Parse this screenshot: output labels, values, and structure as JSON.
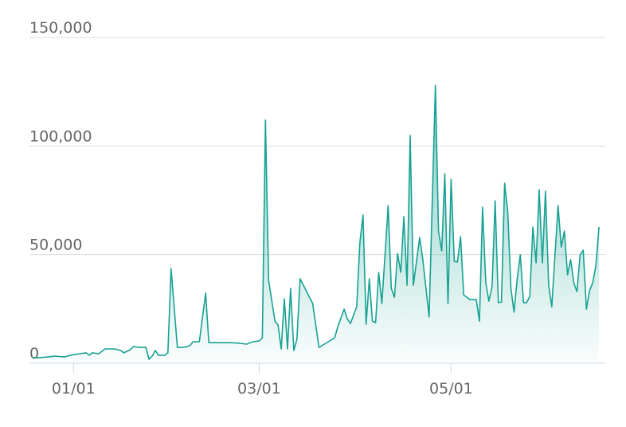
{
  "chart_data": {
    "type": "area",
    "color": "#17a192",
    "grid": true,
    "x": [
      -13,
      -11,
      -8,
      -6,
      -3,
      -1,
      2,
      4,
      5,
      6,
      8,
      10,
      11,
      13,
      15,
      16,
      18,
      19,
      21,
      23,
      24,
      25,
      26,
      27,
      29,
      30,
      31,
      33,
      35,
      37,
      38,
      40,
      42,
      43,
      45,
      48,
      50,
      53,
      55,
      57,
      59,
      60,
      61,
      62,
      64,
      65,
      66,
      67,
      68,
      69,
      70,
      71,
      72,
      76,
      78,
      81,
      83,
      84,
      86,
      87,
      88,
      90,
      91,
      92,
      93,
      94,
      95,
      96,
      97,
      98,
      100,
      101,
      102,
      103,
      104,
      105,
      106,
      107,
      108,
      110,
      111,
      113,
      115,
      116,
      117,
      118,
      119,
      120,
      121,
      122,
      123,
      124,
      126,
      128,
      129,
      130,
      131,
      132,
      133,
      134,
      135,
      136,
      137,
      138,
      139,
      140,
      141,
      142,
      143,
      144,
      145,
      146,
      147,
      148,
      149,
      150,
      151,
      152,
      154,
      155,
      156,
      157,
      158,
      159,
      160,
      161,
      162,
      163,
      164,
      165,
      166,
      167
    ],
    "values": [
      2600,
      2600,
      2900,
      3300,
      2900,
      3700,
      4400,
      4800,
      3700,
      4800,
      4400,
      6600,
      6600,
      6600,
      5900,
      4800,
      6200,
      7700,
      7300,
      7300,
      1800,
      3300,
      5900,
      3700,
      3700,
      4800,
      43600,
      7300,
      7300,
      8100,
      9900,
      9900,
      32300,
      9500,
      9500,
      9500,
      9500,
      9200,
      8800,
      9900,
      10300,
      11700,
      112000,
      38100,
      19400,
      17600,
      6600,
      29700,
      6600,
      34500,
      5900,
      11000,
      38900,
      27500,
      7300,
      9900,
      11700,
      16900,
      24900,
      20500,
      18300,
      26000,
      55400,
      68200,
      18000,
      38900,
      19400,
      18700,
      41800,
      27500,
      72600,
      34500,
      30400,
      50600,
      41800,
      67500,
      35900,
      104900,
      35900,
      57900,
      47700,
      21300,
      128000,
      60900,
      51700,
      87300,
      27500,
      84700,
      46900,
      46600,
      58300,
      31500,
      29300,
      29300,
      19400,
      71900,
      37400,
      28600,
      35200,
      74800,
      27900,
      28200,
      82900,
      70000,
      34500,
      23500,
      38900,
      49900,
      27900,
      27900,
      30800,
      62700,
      46200,
      79900,
      46200,
      79200,
      35900,
      26000,
      72600,
      53500,
      60900,
      40700,
      47700,
      37000,
      33000,
      49900,
      52100,
      24900,
      33400,
      37000,
      44700,
      62700
    ],
    "xlim": [
      -14,
      169
    ],
    "xticks": [
      {
        "value": 0,
        "label": "01/01"
      },
      {
        "value": 59,
        "label": "03/01"
      },
      {
        "value": 120,
        "label": "05/01"
      }
    ],
    "ylim": [
      0,
      150000
    ],
    "yticks": [
      0,
      {
        "value": 50000,
        "label": "50,000"
      },
      {
        "value": 100000,
        "label": "100,000"
      },
      {
        "value": 150000,
        "label": "150,000"
      }
    ]
  }
}
